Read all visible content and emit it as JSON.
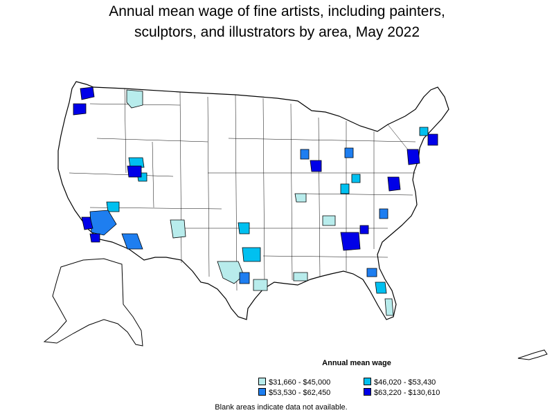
{
  "title": {
    "line1": "Annual mean wage of fine artists, including painters,",
    "line2": "sculptors, and illustrators by area, May 2022"
  },
  "legend": {
    "title": "Annual mean wage",
    "items": [
      {
        "label": "$31,660 - $45,000",
        "color": "#b8ecec"
      },
      {
        "label": "$46,020 - $53,430",
        "color": "#00c0f0"
      },
      {
        "label": "$53,530 - $62,450",
        "color": "#1e7ef0"
      },
      {
        "label": "$63,220 - $130,610",
        "color": "#0000e8"
      }
    ]
  },
  "footnote": "Blank areas indicate data not available."
}
